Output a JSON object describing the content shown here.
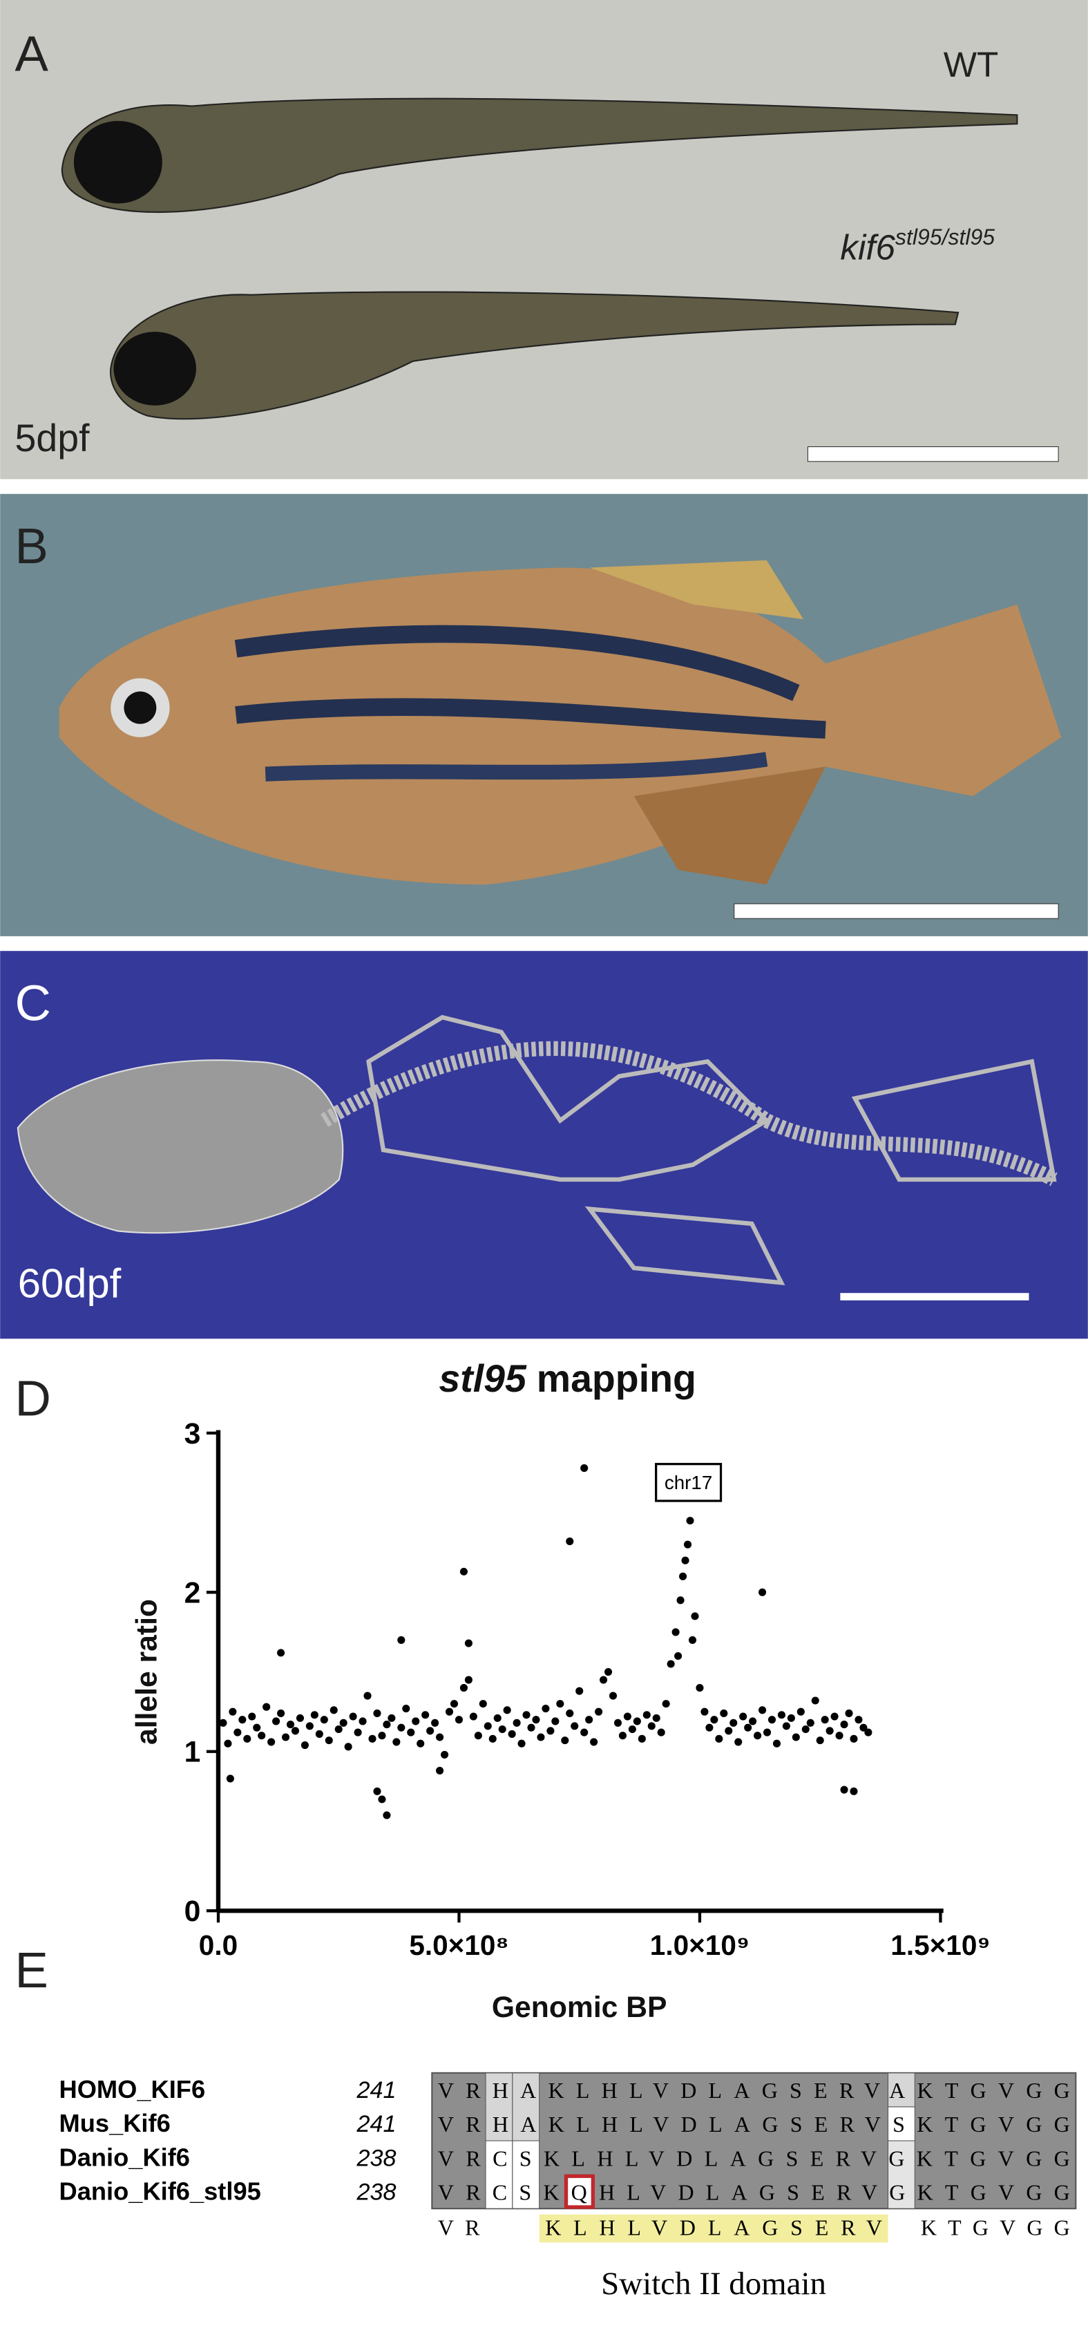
{
  "panels": {
    "a": {
      "label": "A",
      "wt": "WT",
      "mutant": {
        "gene": "kif6",
        "allele": "stl95/stl95"
      },
      "stage": "5dpf"
    },
    "b": {
      "label": "B"
    },
    "c": {
      "label": "C",
      "stage": "60dpf"
    },
    "d": {
      "label": "D"
    },
    "e": {
      "label": "E"
    }
  },
  "chart_data": {
    "type": "scatter",
    "title": {
      "gene": "stl95",
      "text": "mapping"
    },
    "x_label": "Genomic BP",
    "y_label": "allele ratio",
    "annotation": "chr17",
    "color": "#000000",
    "x": [
      10000000.0,
      20000000.0,
      30000000.0,
      40000000.0,
      50000000.0,
      60000000.0,
      70000000.0,
      80000000.0,
      90000000.0,
      100000000.0,
      110000000.0,
      120000000.0,
      130000000.0,
      140000000.0,
      150000000.0,
      160000000.0,
      170000000.0,
      180000000.0,
      190000000.0,
      200000000.0,
      210000000.0,
      220000000.0,
      230000000.0,
      240000000.0,
      250000000.0,
      260000000.0,
      270000000.0,
      280000000.0,
      290000000.0,
      300000000.0,
      310000000.0,
      320000000.0,
      330000000.0,
      340000000.0,
      350000000.0,
      360000000.0,
      370000000.0,
      380000000.0,
      390000000.0,
      400000000.0,
      410000000.0,
      420000000.0,
      430000000.0,
      440000000.0,
      450000000.0,
      460000000.0,
      470000000.0,
      480000000.0,
      490000000.0,
      500000000.0,
      510000000.0,
      520000000.0,
      530000000.0,
      540000000.0,
      550000000.0,
      560000000.0,
      570000000.0,
      580000000.0,
      590000000.0,
      600000000.0,
      610000000.0,
      620000000.0,
      630000000.0,
      640000000.0,
      650000000.0,
      660000000.0,
      670000000.0,
      680000000.0,
      690000000.0,
      700000000.0,
      710000000.0,
      720000000.0,
      730000000.0,
      740000000.0,
      750000000.0,
      760000000.0,
      770000000.0,
      780000000.0,
      790000000.0,
      800000000.0,
      810000000.0,
      820000000.0,
      830000000.0,
      840000000.0,
      850000000.0,
      860000000.0,
      870000000.0,
      880000000.0,
      890000000.0,
      900000000.0,
      910000000.0,
      920000000.0,
      930000000.0,
      940000000.0,
      950000000.0,
      960000000.0,
      970000000.0,
      980000000.0,
      990000000.0,
      1000000000.0,
      1010000000.0,
      1020000000.0,
      1030000000.0,
      1040000000.0,
      1050000000.0,
      1060000000.0,
      1070000000.0,
      1080000000.0,
      1090000000.0,
      1100000000.0,
      1110000000.0,
      1120000000.0,
      1130000000.0,
      1140000000.0,
      1150000000.0,
      1160000000.0,
      1170000000.0,
      1180000000.0,
      1190000000.0,
      1200000000.0,
      1210000000.0,
      1220000000.0,
      1230000000.0,
      1240000000.0,
      1250000000.0,
      1260000000.0,
      1270000000.0,
      1280000000.0,
      1290000000.0,
      1300000000.0,
      1310000000.0,
      1320000000.0,
      1330000000.0,
      1340000000.0,
      1350000000.0,
      955000000.0,
      965000000.0,
      975000000.0,
      985000000.0,
      760000000.0,
      730000000.0,
      510000000.0,
      1130000000.0,
      380000000.0,
      520000000.0,
      130000000.0,
      330000000.0,
      350000000.0,
      340000000.0,
      25000000.0,
      1300000000.0,
      1320000000.0,
      460000000.0
    ],
    "y": [
      1.18,
      1.05,
      1.25,
      1.12,
      1.2,
      1.08,
      1.22,
      1.15,
      1.1,
      1.28,
      1.06,
      1.19,
      1.24,
      1.09,
      1.17,
      1.13,
      1.21,
      1.04,
      1.16,
      1.23,
      1.11,
      1.2,
      1.07,
      1.26,
      1.14,
      1.18,
      1.03,
      1.22,
      1.12,
      1.19,
      1.35,
      1.08,
      1.24,
      1.1,
      1.17,
      1.21,
      1.06,
      1.15,
      1.27,
      1.12,
      1.19,
      1.05,
      1.23,
      1.13,
      1.18,
      1.09,
      0.98,
      1.25,
      1.3,
      1.2,
      1.4,
      1.45,
      1.22,
      1.1,
      1.3,
      1.16,
      1.08,
      1.21,
      1.14,
      1.26,
      1.11,
      1.18,
      1.05,
      1.23,
      1.15,
      1.2,
      1.09,
      1.27,
      1.13,
      1.19,
      1.3,
      1.07,
      1.24,
      1.16,
      1.38,
      1.12,
      1.2,
      1.06,
      1.25,
      1.45,
      1.5,
      1.35,
      1.18,
      1.1,
      1.22,
      1.14,
      1.19,
      1.08,
      1.23,
      1.16,
      1.21,
      1.12,
      1.3,
      1.55,
      1.75,
      1.95,
      2.2,
      2.45,
      1.85,
      1.4,
      1.25,
      1.15,
      1.2,
      1.08,
      1.24,
      1.13,
      1.18,
      1.06,
      1.22,
      1.15,
      1.19,
      1.1,
      1.26,
      1.12,
      1.2,
      1.05,
      1.23,
      1.16,
      1.21,
      1.09,
      1.25,
      1.14,
      1.18,
      1.32,
      1.07,
      1.2,
      1.13,
      1.22,
      1.1,
      1.17,
      1.24,
      1.08,
      1.2,
      1.15,
      1.12,
      1.6,
      2.1,
      2.3,
      1.7,
      2.78,
      2.32,
      2.13,
      2.0,
      1.7,
      1.68,
      1.62,
      0.75,
      0.6,
      0.7,
      0.83,
      0.76,
      0.75,
      0.88
    ],
    "xlim": [
      0,
      1500000000.0
    ],
    "ylim": [
      0,
      3
    ],
    "xticks": [
      {
        "value": 0,
        "label": "0.0"
      },
      {
        "value": 500000000.0,
        "label": "5.0×10⁸"
      },
      {
        "value": 1000000000.0,
        "label": "1.0×10⁹"
      },
      {
        "value": 1500000000.0,
        "label": "1.5×10⁹"
      }
    ],
    "yticks": [
      0,
      1,
      2,
      3
    ]
  },
  "alignment": {
    "rows": [
      {
        "name": "HOMO_KIF6",
        "start": 241,
        "sequence": "VRHAKLHLVDLAGSERVAKTGVGG"
      },
      {
        "name": "Mus_Kif6",
        "start": 241,
        "sequence": "VRHAKLHLVDLAGSERVSKTGVGG"
      },
      {
        "name": "Danio_Kif6",
        "start": 238,
        "sequence": "VRCSKLHLVDLAGSERVGKTGVGG"
      },
      {
        "name": "Danio_Kif6_stl95",
        "start": 238,
        "sequence": "VRCSKQHLVDLAGSERVGKTGVGG"
      }
    ],
    "consensus": [
      "VR",
      "KLHLVDLAGSERV",
      "KTGVGG"
    ],
    "domain": "Switch II domain"
  }
}
